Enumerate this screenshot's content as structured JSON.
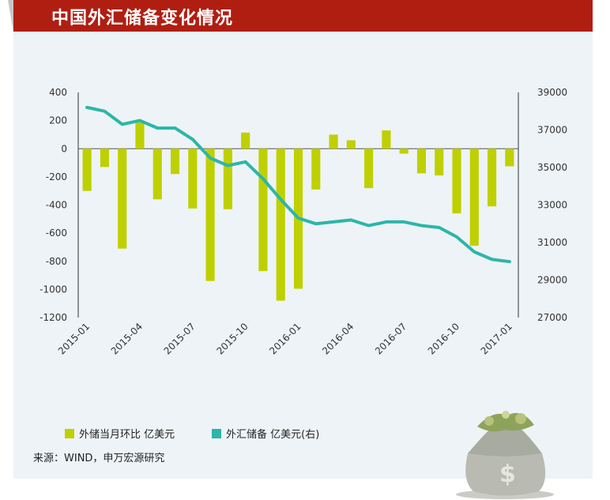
{
  "title": "中国外汇储备变化情况",
  "source": "来源：WIND，申万宏源研究",
  "legend": {
    "bar_label": "外储当月环比 亿美元",
    "line_label": "外汇储备 亿美元(右)"
  },
  "colors": {
    "header": "#b01e12",
    "bar": "#bfd000",
    "line": "#2cb6a8",
    "panel": "#eef3f7"
  },
  "chart_data": {
    "type": "bar+line",
    "x": [
      "2015-01",
      "2015-02",
      "2015-03",
      "2015-04",
      "2015-05",
      "2015-06",
      "2015-07",
      "2015-08",
      "2015-09",
      "2015-10",
      "2015-11",
      "2015-12",
      "2016-01",
      "2016-02",
      "2016-03",
      "2016-04",
      "2016-05",
      "2016-06",
      "2016-07",
      "2016-08",
      "2016-09",
      "2016-10",
      "2016-11",
      "2016-12",
      "2017-01"
    ],
    "x_tick_labels": [
      "2015-01",
      "2015-04",
      "2015-07",
      "2015-10",
      "2016-01",
      "2016-04",
      "2016-07",
      "2016-10",
      "2017-01"
    ],
    "left_axis": {
      "ylim": [
        -1200,
        400
      ],
      "ticks": [
        400,
        200,
        0,
        -200,
        -400,
        -600,
        -800,
        -1000,
        -1200
      ]
    },
    "right_axis": {
      "ylim": [
        27000,
        39000
      ],
      "ticks": [
        39000,
        37000,
        35000,
        33000,
        31000,
        29000,
        27000
      ]
    },
    "series": [
      {
        "name": "外储当月环比 亿美元",
        "axis": "left",
        "kind": "bar",
        "values": [
          -300,
          -130,
          -710,
          190,
          -360,
          -180,
          -425,
          -940,
          -430,
          115,
          -870,
          -1080,
          -995,
          -290,
          100,
          60,
          -280,
          130,
          -35,
          -175,
          -190,
          -460,
          -690,
          -410,
          -125
        ]
      },
      {
        "name": "外汇储备 亿美元(右)",
        "axis": "right",
        "kind": "line",
        "values": [
          38200,
          38000,
          37300,
          37500,
          37100,
          37100,
          36500,
          35500,
          35100,
          35300,
          34400,
          33300,
          32300,
          32000,
          32100,
          32200,
          31900,
          32100,
          32100,
          31900,
          31800,
          31300,
          30500,
          30100,
          29980
        ]
      }
    ]
  }
}
